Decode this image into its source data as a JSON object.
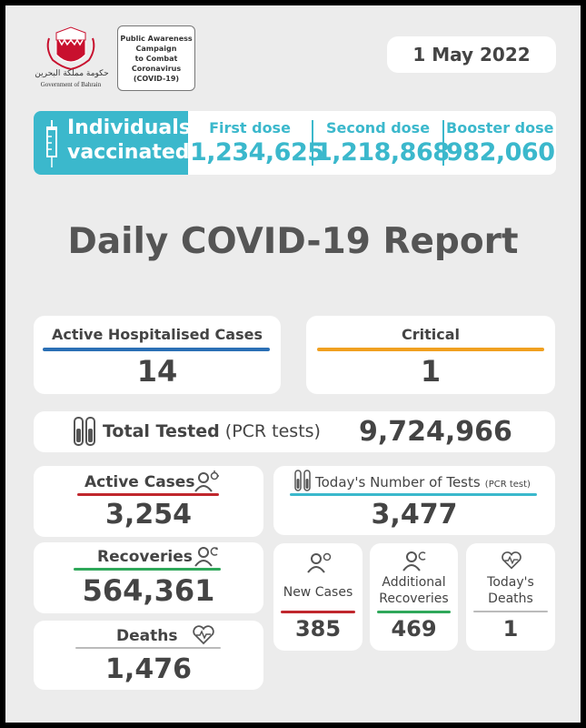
{
  "header": {
    "logo_caption": "Government of Bahrain",
    "logo_arabic": "حكومة مملكة البحرين",
    "campaign_text": "Public Awareness\nCampaign\nto Combat\nCoronavirus\n(COVID-19)",
    "date": "1 May 2022"
  },
  "vaccination": {
    "label_line1": "Individuals",
    "label_line2": "vaccinated",
    "first_dose_label": "First dose",
    "first_dose_value": "1,234,625",
    "second_dose_label": "Second dose",
    "second_dose_value": "1,218,868",
    "booster_dose_label": "Booster dose",
    "booster_dose_value": "982,060"
  },
  "report_title": "Daily COVID-19 Report",
  "hospitalised": {
    "label": "Active Hospitalised Cases",
    "value": "14"
  },
  "critical": {
    "label": "Critical",
    "value": "1"
  },
  "total_tested": {
    "label": "Total Tested",
    "sublabel": "(PCR tests)",
    "value": "9,724,966"
  },
  "active_cases": {
    "label": "Active Cases",
    "value": "3,254"
  },
  "todays_tests": {
    "label": "Today's Number of Tests",
    "sublabel": "(PCR test)",
    "value": "3,477"
  },
  "recoveries": {
    "label": "Recoveries",
    "value": "564,361"
  },
  "deaths": {
    "label": "Deaths",
    "value": "1,476"
  },
  "new_cases": {
    "label": "New Cases",
    "value": "385"
  },
  "additional_recoveries": {
    "label_line1": "Additional",
    "label_line2": "Recoveries",
    "value": "469"
  },
  "todays_deaths": {
    "label_line1": "Today's",
    "label_line2": "Deaths",
    "value": "1"
  },
  "colors": {
    "teal": "#3bb8cc",
    "blue": "#2a6fb5",
    "orange": "#f0a020",
    "red": "#c0272d",
    "green": "#2fa85a",
    "text": "#444444",
    "panel": "#ececec"
  },
  "icons": [
    "emblem-icon",
    "syringe-icon",
    "test-tubes-icon",
    "people-virus-icon",
    "people-recovery-icon",
    "heart-pulse-icon"
  ]
}
